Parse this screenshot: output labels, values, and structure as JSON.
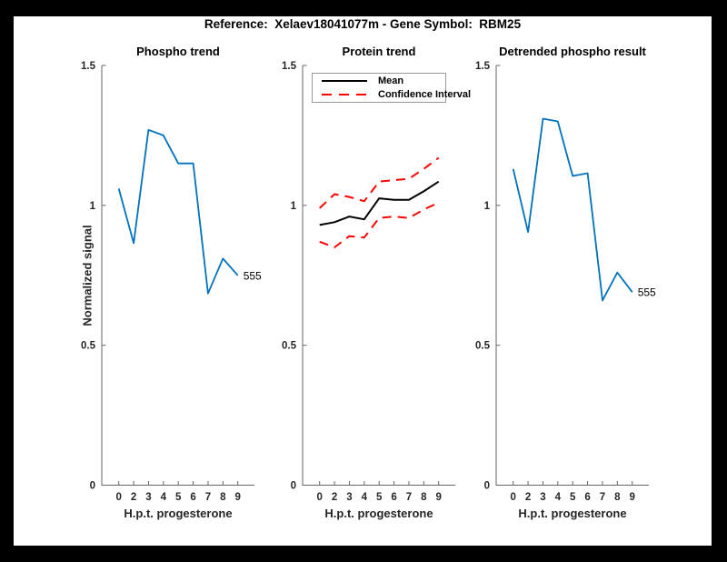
{
  "figure": {
    "title": "Reference:  Xelaev18041077m - Gene Symbol:  RBM25",
    "frame_color": "#000000",
    "background_color": "#ffffff"
  },
  "colors": {
    "phospho_line": "#0072BD",
    "mean_line": "#000000",
    "ci_line": "#FF0000",
    "axis": "#666666",
    "tick_text": "#262626"
  },
  "axes": {
    "ylabel": "Normalized signal",
    "xlabel": "H.p.t. progesterone",
    "ylim": [
      0,
      1.5
    ],
    "yticks": [
      0,
      0.5,
      1,
      1.5
    ],
    "yticklabels": [
      "0",
      "0.5",
      "1",
      "1.5"
    ],
    "xticklabels": [
      "0",
      "2",
      "3",
      "4",
      "5",
      "6",
      "7",
      "8",
      "9"
    ],
    "grid": false
  },
  "chart_data": [
    {
      "type": "line",
      "key": "phospho-trend",
      "title": "Phospho trend",
      "xlabel": "H.p.t. progesterone",
      "ylabel": "Normalized signal",
      "x": [
        0,
        2,
        3,
        4,
        5,
        6,
        7,
        8,
        9
      ],
      "ylim": [
        0,
        1.5
      ],
      "series": [
        {
          "name": "Phospho",
          "color": "#0072BD",
          "style": "solid",
          "width": 1.8,
          "values": [
            1.06,
            0.865,
            1.27,
            1.25,
            1.15,
            1.15,
            0.685,
            0.81,
            0.75
          ]
        }
      ],
      "end_label": "555"
    },
    {
      "type": "line",
      "key": "protein-trend",
      "title": "Protein trend",
      "xlabel": "H.p.t. progesterone",
      "x": [
        0,
        2,
        3,
        4,
        5,
        6,
        7,
        8,
        9
      ],
      "ylim": [
        0,
        1.5
      ],
      "series": [
        {
          "name": "Confidence Interval",
          "color": "#FF0000",
          "style": "dashed",
          "width": 2,
          "values": [
            0.99,
            1.04,
            1.03,
            1.015,
            1.085,
            1.09,
            1.095,
            1.13,
            1.17
          ]
        },
        {
          "name": "Confidence Interval",
          "color": "#FF0000",
          "style": "dashed",
          "width": 2,
          "values": [
            0.87,
            0.85,
            0.89,
            0.885,
            0.955,
            0.96,
            0.955,
            0.985,
            1.01
          ]
        },
        {
          "name": "Mean",
          "color": "#000000",
          "style": "solid",
          "width": 2,
          "values": [
            0.93,
            0.94,
            0.96,
            0.95,
            1.025,
            1.02,
            1.02,
            1.05,
            1.085
          ]
        }
      ],
      "legend": {
        "position": "top-left",
        "items": [
          {
            "label": "Mean"
          },
          {
            "label": "Confidence Interval"
          }
        ]
      }
    },
    {
      "type": "line",
      "key": "detrended-phospho",
      "title": "Detrended phospho result",
      "xlabel": "H.p.t. progesterone",
      "x": [
        0,
        2,
        3,
        4,
        5,
        6,
        7,
        8,
        9
      ],
      "ylim": [
        0,
        1.5
      ],
      "series": [
        {
          "name": "Detrended phospho",
          "color": "#0072BD",
          "style": "solid",
          "width": 1.8,
          "values": [
            1.13,
            0.905,
            1.31,
            1.3,
            1.105,
            1.115,
            0.66,
            0.76,
            0.69
          ]
        }
      ],
      "end_label": "555"
    }
  ]
}
